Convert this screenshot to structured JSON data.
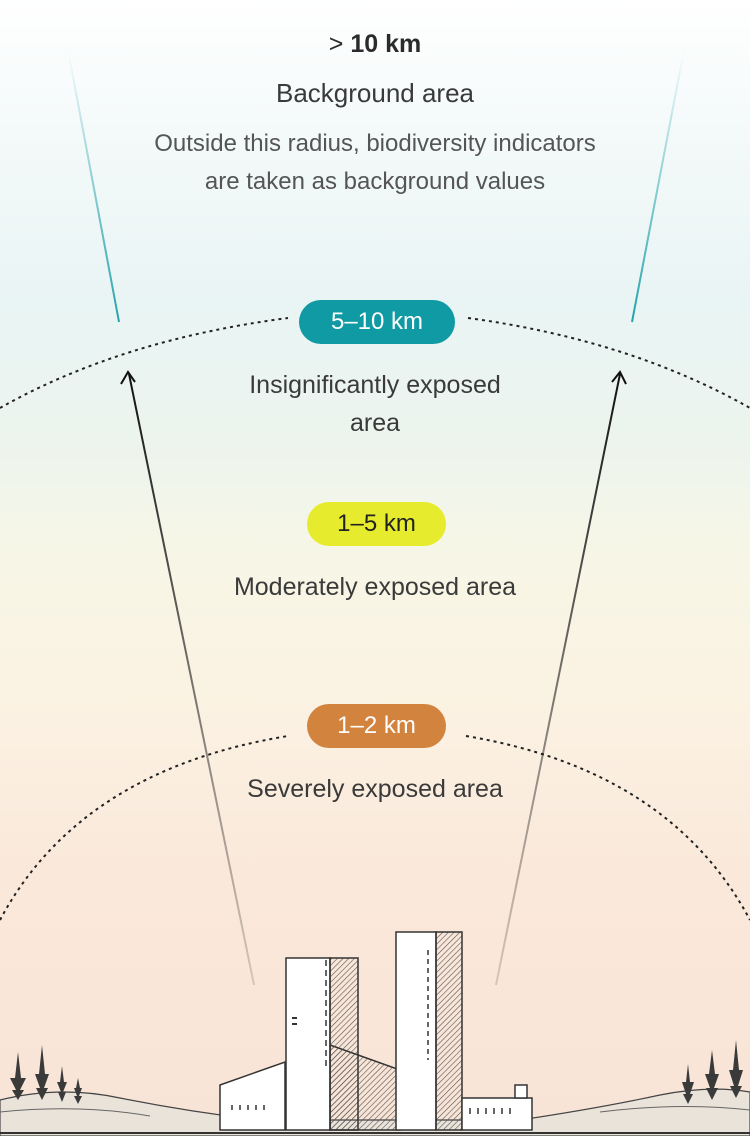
{
  "outer": {
    "range_prefix": ">",
    "range_value": "10 km",
    "title": "Background area",
    "description": "Outside this radius, biodiversity indicators are taken as background values"
  },
  "zones": [
    {
      "range": "5–10 km",
      "label": "Insignificantly exposed area",
      "color": "#0f9aa4"
    },
    {
      "range": "1–5 km",
      "label": "Moderately exposed area",
      "color": "#e6ec2d"
    },
    {
      "range": "1–2 km",
      "label": "Severely exposed area",
      "color": "#d2833d"
    }
  ],
  "illustration": {
    "subject": "mine-headframe-buildings-with-trees"
  }
}
